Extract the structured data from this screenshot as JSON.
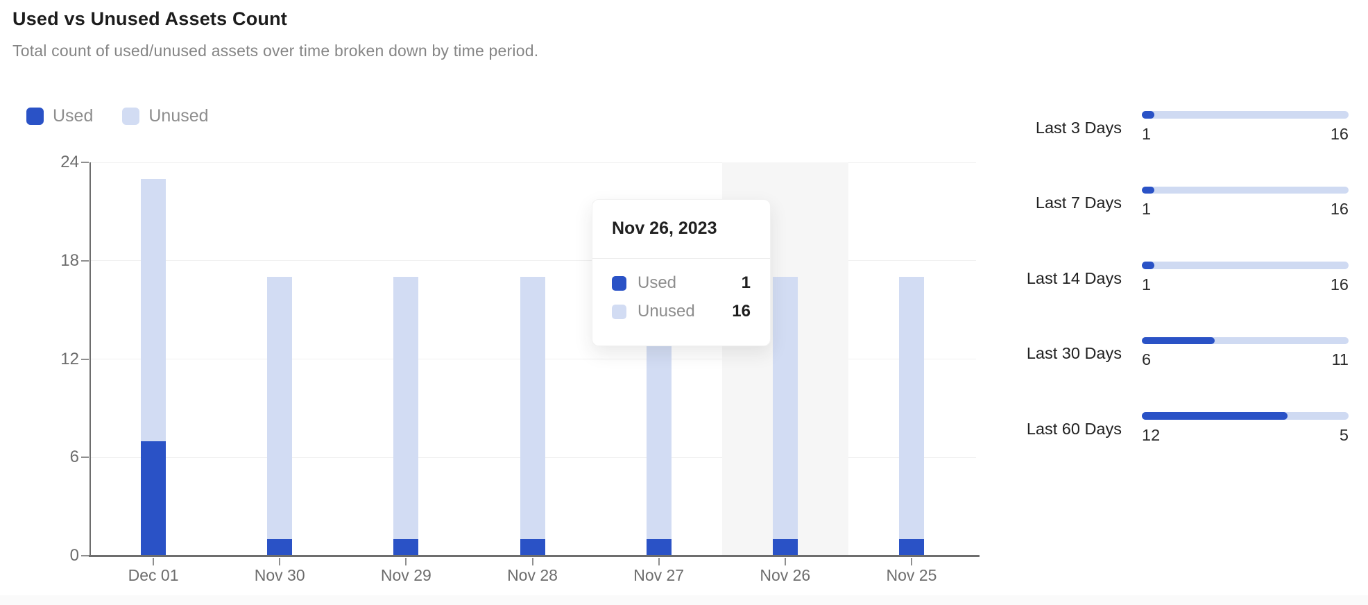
{
  "header": {
    "title": "Used vs Unused Assets Count",
    "subtitle": "Total count of used/unused assets over time broken down by time period."
  },
  "colors": {
    "used": "#2a52c6",
    "unused": "#d2dcf3",
    "track": "#cfdaf2",
    "highlight_band": "#f6f6f6"
  },
  "legend": [
    {
      "label": "Used",
      "color": "#2a52c6"
    },
    {
      "label": "Unused",
      "color": "#d2dcf3"
    }
  ],
  "chart_data": {
    "type": "bar",
    "stacked": true,
    "title": "Used vs Unused Assets Count",
    "xlabel": "",
    "ylabel": "",
    "categories": [
      "Dec 01",
      "Nov 30",
      "Nov 29",
      "Nov 28",
      "Nov 27",
      "Nov 26",
      "Nov 25"
    ],
    "series": [
      {
        "name": "Used",
        "color": "#2a52c6",
        "values": [
          7,
          1,
          1,
          1,
          1,
          1,
          1
        ]
      },
      {
        "name": "Unused",
        "color": "#d2dcf3",
        "values": [
          16,
          16,
          16,
          16,
          16,
          16,
          16
        ]
      }
    ],
    "ylim": [
      0,
      24
    ],
    "yticks": [
      0,
      6,
      12,
      18,
      24
    ],
    "grid": true,
    "legend_position": "top-left",
    "highlighted_category": "Nov 26"
  },
  "tooltip": {
    "title": "Nov 26, 2023",
    "rows": [
      {
        "label": "Used",
        "value": "1",
        "color": "#2a52c6"
      },
      {
        "label": "Unused",
        "value": "16",
        "color": "#d2dcf3"
      }
    ]
  },
  "time_periods": [
    {
      "label": "Last 3 Days",
      "used": 1,
      "unused": 16
    },
    {
      "label": "Last 7 Days",
      "used": 1,
      "unused": 16
    },
    {
      "label": "Last 14 Days",
      "used": 1,
      "unused": 16
    },
    {
      "label": "Last 30 Days",
      "used": 6,
      "unused": 11
    },
    {
      "label": "Last 60 Days",
      "used": 12,
      "unused": 5
    }
  ]
}
